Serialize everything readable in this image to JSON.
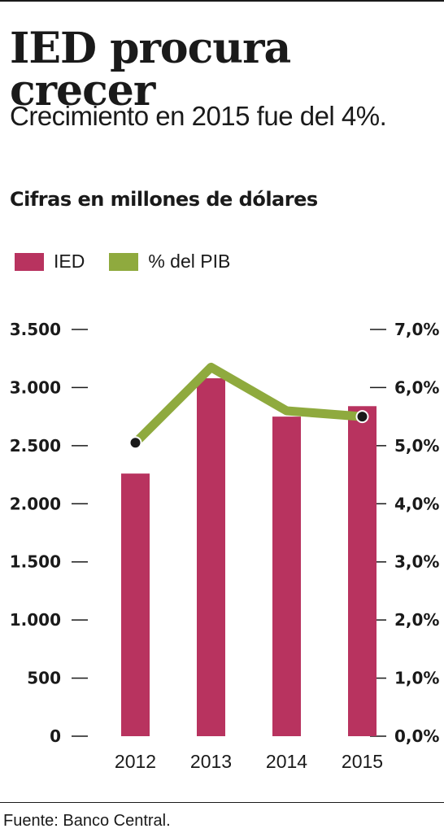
{
  "header": {
    "title": "IED procura crecer",
    "subtitle": "Crecimiento en 2015 fue del 4%.",
    "unit_label": "Cifras en millones de dólares"
  },
  "legend": {
    "items": [
      {
        "label": "IED",
        "color": "#b8335f"
      },
      {
        "label": "% del PIB",
        "color": "#8faa3e"
      }
    ]
  },
  "chart_data": {
    "type": "bar",
    "categories": [
      "2012",
      "2013",
      "2014",
      "2015"
    ],
    "series": [
      {
        "name": "IED",
        "type": "bar",
        "axis": "left",
        "color": "#b8335f",
        "values": [
          2260,
          3080,
          2750,
          2840
        ]
      },
      {
        "name": "% del PIB",
        "type": "line",
        "axis": "right",
        "color": "#8faa3e",
        "values": [
          5.05,
          6.35,
          5.6,
          5.5
        ],
        "markers": [
          0,
          3
        ]
      }
    ],
    "y_left": {
      "range": [
        0,
        3500
      ],
      "ticks": [
        0,
        500,
        1000,
        1500,
        2000,
        2500,
        3000,
        3500
      ],
      "tick_labels": [
        "0",
        "500",
        "1.000",
        "1.500",
        "2.000",
        "2.500",
        "3.000",
        "3.500"
      ]
    },
    "y_right": {
      "range": [
        0,
        7
      ],
      "ticks": [
        0,
        1,
        2,
        3,
        4,
        5,
        6,
        7
      ],
      "tick_labels": [
        "0,0%",
        "1,0%",
        "2,0%",
        "3,0%",
        "4,0%",
        "5,0%",
        "6,0%",
        "7,0%"
      ]
    },
    "grid": false,
    "legend_position": "top-left"
  },
  "footer": {
    "source": "Fuente: Banco Central."
  }
}
